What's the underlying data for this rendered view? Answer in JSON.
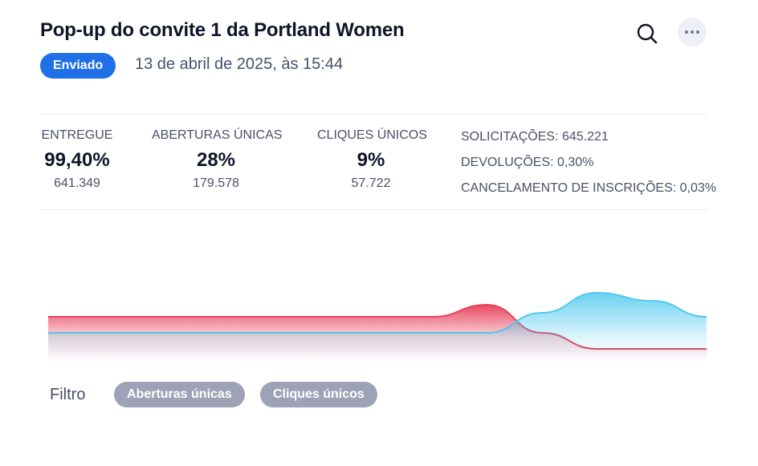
{
  "header": {
    "title": "Pop-up do convite 1 da Portland Women",
    "status_badge": "Enviado",
    "date": "13 de abril de 2025, às 15:44"
  },
  "icons": {
    "search": "search-icon",
    "more": "more-horizontal-icon"
  },
  "stats": [
    {
      "label": "ENTREGUE",
      "percent": "99,40%",
      "count": "641.349"
    },
    {
      "label": "ABERTURAS ÚNICAS",
      "percent": "28%",
      "count": "179.578"
    },
    {
      "label": "CLIQUES ÚNICOS",
      "percent": "9%",
      "count": "57.722"
    }
  ],
  "side_stats": [
    "SOLICITAÇÕES: 645.221",
    "DEVOLUÇÕES: 0,30%",
    "CANCELAMENTO DE INSCRIÇÕES: 0,03%"
  ],
  "chart_data": {
    "type": "area",
    "x": [
      0,
      1,
      2,
      3,
      4,
      5,
      6,
      7,
      8,
      9,
      10,
      11,
      12
    ],
    "series": [
      {
        "color": "#e8405a",
        "values": [
          1,
          1,
          1,
          1,
          1,
          1,
          1,
          1,
          1.3,
          0.6,
          0.2,
          0.2,
          0.2
        ]
      },
      {
        "color": "#4fc9ef",
        "values": [
          0.6,
          0.6,
          0.6,
          0.6,
          0.6,
          0.6,
          0.6,
          0.6,
          0.6,
          1.1,
          1.6,
          1.4,
          1.0
        ]
      }
    ],
    "axes": "none",
    "grid": false,
    "legend": "none"
  },
  "filter": {
    "label": "Filtro",
    "chips": [
      "Aberturas únicas",
      "Cliques únicos"
    ]
  },
  "colors": {
    "accent": "#1f6fe6",
    "series_red": "#e8405a",
    "series_blue": "#4fc9ef",
    "chip": "#9da2b6"
  }
}
